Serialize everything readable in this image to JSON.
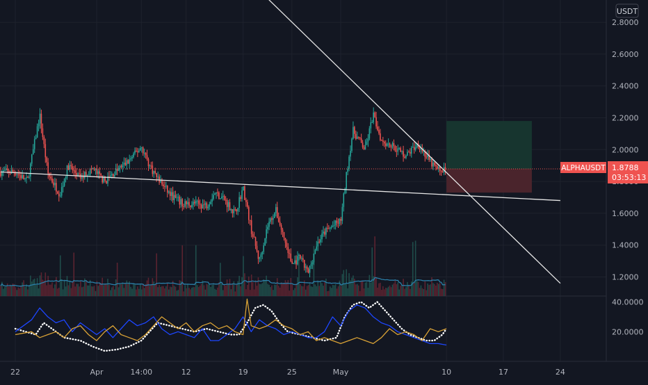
{
  "colors": {
    "background": "#131722",
    "grid": "#1e222d",
    "axis_text": "#b2b5be",
    "candle_up": "#26a69a",
    "candle_down": "#ef5350",
    "volume_up": "#1f4d4a",
    "volume_down": "#5b2330",
    "volume_ma": "#2b7fa8",
    "trendline": "#e6e6e6",
    "last_price": "#ef5350",
    "profit_zone": "#17352f",
    "loss_zone": "#4a242c",
    "di_plus": "#1d46ff",
    "di_minus": "#d9a236",
    "adx": "#ffffff"
  },
  "chart_data": {
    "type": "candlestick",
    "symbol": "ALPHAUSDT",
    "currency_label": "USDT",
    "last_price": "1.8788",
    "countdown": "03:53:13",
    "price_axis": {
      "range": [
        1.08,
        2.94
      ],
      "ticks": [
        "2.8000",
        "2.6000",
        "2.4000",
        "2.2000",
        "2.0000",
        "1.8000",
        "1.6000",
        "1.4000",
        "1.2000"
      ]
    },
    "indicator_axis": {
      "range": [
        0,
        44
      ],
      "ticks": [
        "40.0000",
        "20.0000"
      ]
    },
    "time_axis": {
      "labels": [
        "22",
        "Apr",
        "14:00",
        "12",
        "19",
        "25",
        "May",
        "10",
        "17",
        "24"
      ],
      "label_days": [
        0,
        10,
        15.5,
        21,
        28,
        34,
        40,
        53,
        60,
        67
      ]
    },
    "candles_end_day": 53,
    "price_path": [
      [
        0,
        1.86
      ],
      [
        1.5,
        1.8
      ],
      [
        3,
        2.22
      ],
      [
        4,
        1.85
      ],
      [
        5.5,
        1.72
      ],
      [
        6.5,
        1.9
      ],
      [
        8,
        1.82
      ],
      [
        9.5,
        1.88
      ],
      [
        11,
        1.8
      ],
      [
        12.5,
        1.87
      ],
      [
        14,
        1.93
      ],
      [
        15.5,
        2.02
      ],
      [
        16.5,
        1.9
      ],
      [
        17.5,
        1.82
      ],
      [
        19,
        1.72
      ],
      [
        20.5,
        1.66
      ],
      [
        22,
        1.66
      ],
      [
        23.5,
        1.65
      ],
      [
        24.5,
        1.73
      ],
      [
        25.5,
        1.7
      ],
      [
        27,
        1.6
      ],
      [
        28,
        1.76
      ],
      [
        29,
        1.5
      ],
      [
        30,
        1.3
      ],
      [
        31,
        1.52
      ],
      [
        32,
        1.62
      ],
      [
        33,
        1.45
      ],
      [
        34,
        1.28
      ],
      [
        35,
        1.32
      ],
      [
        36,
        1.22
      ],
      [
        37,
        1.4
      ],
      [
        38,
        1.48
      ],
      [
        39,
        1.52
      ],
      [
        40,
        1.55
      ],
      [
        40.8,
        1.88
      ],
      [
        41.5,
        2.12
      ],
      [
        43,
        2.0
      ],
      [
        44,
        2.22
      ],
      [
        45,
        2.06
      ],
      [
        46.5,
        2.02
      ],
      [
        48,
        1.96
      ],
      [
        49.5,
        2.04
      ],
      [
        51,
        1.92
      ],
      [
        52,
        1.87
      ],
      [
        53,
        1.8788
      ]
    ],
    "trendlines": [
      {
        "from": [
          -1.8,
          1.86
        ],
        "to": [
          67,
          1.68
        ]
      },
      {
        "from": [
          30,
          3.0
        ],
        "to": [
          67,
          1.16
        ]
      }
    ],
    "position": {
      "entry": 1.8788,
      "target": 2.18,
      "stop": 1.73,
      "start_day": 53,
      "end_day": 63.5
    },
    "series": [
      {
        "id": "adx",
        "style": "dotted",
        "values": [
          [
            0,
            22
          ],
          [
            2.5,
            18
          ],
          [
            3.5,
            26
          ],
          [
            4.5,
            22
          ],
          [
            6,
            16
          ],
          [
            8,
            14
          ],
          [
            9.5,
            10
          ],
          [
            11,
            7
          ],
          [
            12.5,
            8
          ],
          [
            14,
            10
          ],
          [
            15.5,
            14
          ],
          [
            16.5,
            20
          ],
          [
            17.5,
            26
          ],
          [
            19,
            24
          ],
          [
            20.5,
            22
          ],
          [
            22,
            20
          ],
          [
            23.5,
            22
          ],
          [
            25,
            20
          ],
          [
            26.5,
            18
          ],
          [
            27.5,
            18
          ],
          [
            28.5,
            26
          ],
          [
            29.5,
            36
          ],
          [
            30.5,
            38
          ],
          [
            31.5,
            34
          ],
          [
            32.5,
            26
          ],
          [
            33.5,
            20
          ],
          [
            35,
            18
          ],
          [
            36.5,
            16
          ],
          [
            38,
            14
          ],
          [
            39.5,
            16
          ],
          [
            40.5,
            30
          ],
          [
            41.5,
            38
          ],
          [
            42.5,
            40
          ],
          [
            43.5,
            36
          ],
          [
            44.5,
            40
          ],
          [
            45.5,
            34
          ],
          [
            46.5,
            28
          ],
          [
            47.5,
            22
          ],
          [
            48.5,
            18
          ],
          [
            49.5,
            16
          ],
          [
            50.5,
            14
          ],
          [
            51.5,
            14
          ],
          [
            52.5,
            18
          ],
          [
            53,
            22
          ]
        ]
      },
      {
        "id": "di_plus",
        "style": "solid",
        "values": [
          [
            0,
            20
          ],
          [
            2,
            28
          ],
          [
            3,
            36
          ],
          [
            4,
            30
          ],
          [
            5,
            26
          ],
          [
            6,
            28
          ],
          [
            7,
            20
          ],
          [
            8,
            26
          ],
          [
            9,
            22
          ],
          [
            10,
            18
          ],
          [
            11,
            22
          ],
          [
            12,
            16
          ],
          [
            13,
            22
          ],
          [
            14,
            28
          ],
          [
            15,
            24
          ],
          [
            16,
            26
          ],
          [
            17,
            30
          ],
          [
            18,
            22
          ],
          [
            19,
            18
          ],
          [
            20,
            20
          ],
          [
            21,
            18
          ],
          [
            22,
            16
          ],
          [
            23,
            22
          ],
          [
            24,
            14
          ],
          [
            25,
            14
          ],
          [
            26,
            18
          ],
          [
            27,
            22
          ],
          [
            28,
            30
          ],
          [
            29,
            20
          ],
          [
            30,
            28
          ],
          [
            31,
            24
          ],
          [
            32,
            22
          ],
          [
            33,
            18
          ],
          [
            34,
            20
          ],
          [
            35,
            18
          ],
          [
            36,
            16
          ],
          [
            37,
            16
          ],
          [
            38,
            20
          ],
          [
            39,
            30
          ],
          [
            40,
            24
          ],
          [
            41,
            34
          ],
          [
            42,
            38
          ],
          [
            43,
            36
          ],
          [
            44,
            30
          ],
          [
            45,
            26
          ],
          [
            46,
            24
          ],
          [
            47,
            20
          ],
          [
            48,
            18
          ],
          [
            49,
            16
          ],
          [
            50,
            14
          ],
          [
            51,
            12
          ],
          [
            52,
            12
          ],
          [
            53,
            11
          ]
        ]
      },
      {
        "id": "di_minus",
        "style": "solid",
        "values": [
          [
            0,
            18
          ],
          [
            2,
            20
          ],
          [
            3,
            16
          ],
          [
            4,
            18
          ],
          [
            5,
            20
          ],
          [
            6,
            16
          ],
          [
            7,
            22
          ],
          [
            8,
            24
          ],
          [
            9,
            18
          ],
          [
            10,
            14
          ],
          [
            11,
            20
          ],
          [
            12,
            24
          ],
          [
            13,
            18
          ],
          [
            14,
            16
          ],
          [
            15,
            14
          ],
          [
            16,
            18
          ],
          [
            17,
            24
          ],
          [
            18,
            30
          ],
          [
            19,
            26
          ],
          [
            20,
            22
          ],
          [
            21,
            26
          ],
          [
            22,
            20
          ],
          [
            23,
            24
          ],
          [
            24,
            26
          ],
          [
            25,
            22
          ],
          [
            26,
            24
          ],
          [
            27,
            20
          ],
          [
            28,
            18
          ],
          [
            28.5,
            42
          ],
          [
            29,
            24
          ],
          [
            30,
            22
          ],
          [
            31,
            24
          ],
          [
            32,
            28
          ],
          [
            33,
            24
          ],
          [
            34,
            22
          ],
          [
            35,
            18
          ],
          [
            36,
            20
          ],
          [
            37,
            14
          ],
          [
            38,
            16
          ],
          [
            39,
            14
          ],
          [
            40,
            12
          ],
          [
            41,
            14
          ],
          [
            42,
            16
          ],
          [
            43,
            14
          ],
          [
            44,
            12
          ],
          [
            45,
            16
          ],
          [
            46,
            22
          ],
          [
            47,
            18
          ],
          [
            48,
            20
          ],
          [
            49,
            18
          ],
          [
            50,
            14
          ],
          [
            51,
            22
          ],
          [
            52,
            20
          ],
          [
            53,
            22
          ]
        ]
      }
    ]
  }
}
